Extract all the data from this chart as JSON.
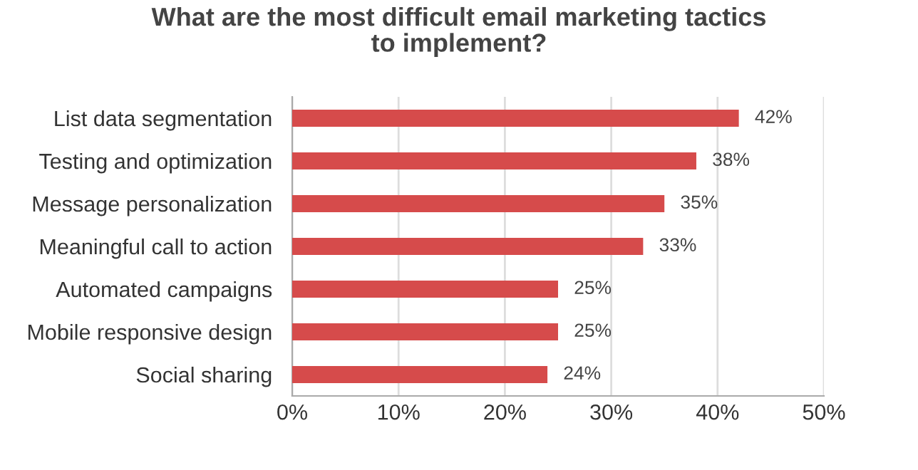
{
  "chart_data": {
    "type": "bar",
    "orientation": "horizontal",
    "title": "What are the most difficult email marketing tactics\nto implement?",
    "categories": [
      "List data segmentation",
      "Testing and optimization",
      "Message personalization",
      "Meaningful call to action",
      "Automated campaigns",
      "Mobile responsive design",
      "Social sharing"
    ],
    "values": [
      42,
      38,
      35,
      33,
      25,
      25,
      24
    ],
    "value_labels": [
      "42%",
      "38%",
      "35%",
      "33%",
      "25%",
      "25%",
      "24%"
    ],
    "color": "#d64b4b",
    "xlim": [
      0,
      50
    ],
    "xticks": [
      {
        "value": 0,
        "label": "0%"
      },
      {
        "value": 10,
        "label": "10%"
      },
      {
        "value": 20,
        "label": "20%"
      },
      {
        "value": 30,
        "label": "30%"
      },
      {
        "value": 40,
        "label": "40%"
      },
      {
        "value": 50,
        "label": "50%"
      }
    ],
    "grid": "x",
    "legend": false
  }
}
